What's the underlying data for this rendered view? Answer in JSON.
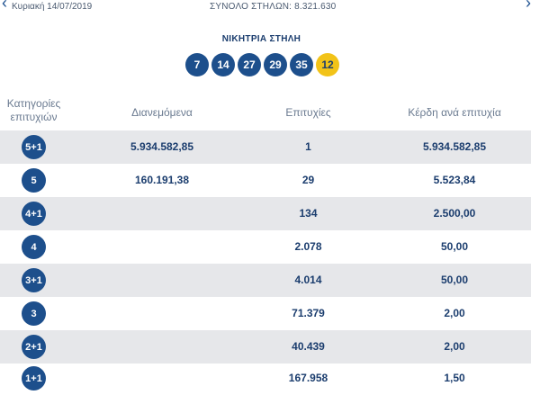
{
  "top": {
    "date": "Κυριακή 14/07/2019",
    "total_columns": "ΣΥΝΟΛΟ ΣΤΗΛΩΝ: 8.321.630"
  },
  "winning": {
    "title": "ΝΙΚΗΤΡΙΑ ΣΤΗΛΗ",
    "numbers": [
      "7",
      "14",
      "27",
      "29",
      "35"
    ],
    "joker": "12",
    "colors": {
      "ball": "#1d4f8c",
      "joker": "#f2c318"
    }
  },
  "table": {
    "headers": {
      "categories": "Κατηγορίες επιτυχιών",
      "distributed": "Διανεμόμενα",
      "winners": "Επιτυχίες",
      "prize": "Κέρδη ανά επιτυχία"
    },
    "rows": [
      {
        "category": "5+1",
        "distributed": "5.934.582,85",
        "winners": "1",
        "prize": "5.934.582,85"
      },
      {
        "category": "5",
        "distributed": "160.191,38",
        "winners": "29",
        "prize": "5.523,84"
      },
      {
        "category": "4+1",
        "distributed": "",
        "winners": "134",
        "prize": "2.500,00"
      },
      {
        "category": "4",
        "distributed": "",
        "winners": "2.078",
        "prize": "50,00"
      },
      {
        "category": "3+1",
        "distributed": "",
        "winners": "4.014",
        "prize": "50,00"
      },
      {
        "category": "3",
        "distributed": "",
        "winners": "71.379",
        "prize": "2,00"
      },
      {
        "category": "2+1",
        "distributed": "",
        "winners": "40.439",
        "prize": "2,00"
      },
      {
        "category": "1+1",
        "distributed": "",
        "winners": "167.958",
        "prize": "1,50"
      }
    ]
  }
}
